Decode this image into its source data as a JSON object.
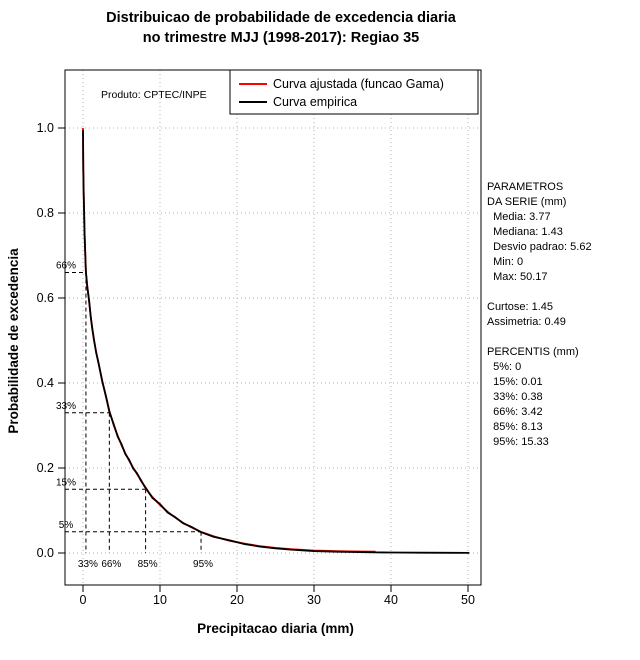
{
  "chart_data": {
    "type": "line",
    "title": "Distribuicao de probabilidade de excedencia diaria no trimestre MJJ (1998-2017): Regiao 35",
    "title_lines": [
      "Distribuicao de probabilidade de excedencia diaria",
      "no trimestre MJJ (1998-2017): Regiao 35"
    ],
    "xlabel": "Precipitacao diaria (mm)",
    "ylabel": "Probabilidade de excedencia",
    "annotation": "Produto: CPTEC/INPE",
    "xlim": [
      0,
      50
    ],
    "ylim": [
      0,
      1
    ],
    "grid": true,
    "grid_color": "#b3b3b3",
    "legend_position": "top",
    "xticks": [
      {
        "v": 0,
        "label": "0"
      },
      {
        "v": 10,
        "label": "10"
      },
      {
        "v": 20,
        "label": "20"
      },
      {
        "v": 30,
        "label": "30"
      },
      {
        "v": 40,
        "label": "40"
      },
      {
        "v": 50,
        "label": "50"
      }
    ],
    "yticks": [
      {
        "v": 0,
        "label": "0.0"
      },
      {
        "v": 0.2,
        "label": "0.2"
      },
      {
        "v": 0.4,
        "label": "0.4"
      },
      {
        "v": 0.6,
        "label": "0.6"
      },
      {
        "v": 0.8,
        "label": "0.8"
      },
      {
        "v": 1,
        "label": "1.0"
      }
    ],
    "series": [
      {
        "name": "Curva ajustada (funcao Gama)",
        "color": "#ff0000",
        "width": 1.8,
        "points": [
          [
            0,
            1
          ],
          [
            0.03,
            0.92
          ],
          [
            0.07,
            0.865
          ],
          [
            0.12,
            0.82
          ],
          [
            0.2,
            0.757
          ],
          [
            0.3,
            0.703
          ],
          [
            0.38,
            0.66
          ],
          [
            0.55,
            0.63
          ],
          [
            0.8,
            0.59
          ],
          [
            1,
            0.558
          ],
          [
            1.2,
            0.528
          ],
          [
            1.43,
            0.5
          ],
          [
            1.7,
            0.474
          ],
          [
            2,
            0.447
          ],
          [
            2.5,
            0.405
          ],
          [
            3,
            0.366
          ],
          [
            3.42,
            0.335
          ],
          [
            4,
            0.3
          ],
          [
            4.5,
            0.276
          ],
          [
            5,
            0.254
          ],
          [
            5.5,
            0.235
          ],
          [
            6,
            0.217
          ],
          [
            6.5,
            0.201
          ],
          [
            7,
            0.186
          ],
          [
            7.6,
            0.17
          ],
          [
            8.13,
            0.152
          ],
          [
            9,
            0.132
          ],
          [
            10,
            0.113
          ],
          [
            11,
            0.097
          ],
          [
            12,
            0.083
          ],
          [
            13,
            0.071
          ],
          [
            14,
            0.061
          ],
          [
            15.33,
            0.05
          ],
          [
            17,
            0.039
          ],
          [
            19,
            0.029
          ],
          [
            21,
            0.022
          ],
          [
            23,
            0.016
          ],
          [
            25,
            0.012
          ],
          [
            27,
            0.009
          ],
          [
            30,
            0.006
          ],
          [
            33,
            0.0045
          ],
          [
            36,
            0.0035
          ],
          [
            38,
            0.003
          ]
        ]
      },
      {
        "name": "Curva empirica",
        "color": "#000000",
        "width": 1.8,
        "points": [
          [
            0,
            0.995
          ],
          [
            0.04,
            0.9
          ],
          [
            0.09,
            0.845
          ],
          [
            0.14,
            0.805
          ],
          [
            0.2,
            0.755
          ],
          [
            0.3,
            0.7
          ],
          [
            0.38,
            0.662
          ],
          [
            0.55,
            0.628
          ],
          [
            0.8,
            0.592
          ],
          [
            1,
            0.556
          ],
          [
            1.2,
            0.53
          ],
          [
            1.43,
            0.502
          ],
          [
            1.7,
            0.472
          ],
          [
            2,
            0.449
          ],
          [
            2.5,
            0.403
          ],
          [
            3,
            0.368
          ],
          [
            3.42,
            0.333
          ],
          [
            4,
            0.302
          ],
          [
            4.5,
            0.274
          ],
          [
            5,
            0.256
          ],
          [
            5.5,
            0.233
          ],
          [
            6,
            0.219
          ],
          [
            6.5,
            0.199
          ],
          [
            7,
            0.188
          ],
          [
            7.6,
            0.168
          ],
          [
            8.13,
            0.154
          ],
          [
            9,
            0.13
          ],
          [
            10,
            0.115
          ],
          [
            11,
            0.095
          ],
          [
            12,
            0.084
          ],
          [
            13,
            0.07
          ],
          [
            14,
            0.062
          ],
          [
            15.33,
            0.049
          ],
          [
            17,
            0.038
          ],
          [
            19,
            0.03
          ],
          [
            21,
            0.021
          ],
          [
            23,
            0.015
          ],
          [
            25,
            0.011
          ],
          [
            27,
            0.008
          ],
          [
            30,
            0.0045
          ],
          [
            33,
            0.003
          ],
          [
            36,
            0.002
          ],
          [
            38,
            0.0015
          ],
          [
            40,
            0.0012
          ],
          [
            44,
            0.0008
          ],
          [
            48,
            0.0004
          ],
          [
            50.17,
            0.0002
          ]
        ]
      }
    ],
    "percentile_guides": [
      {
        "y_label": "66%",
        "y": 0.66,
        "x": 0.38,
        "x_label": "33%"
      },
      {
        "y_label": "33%",
        "y": 0.33,
        "x": 3.42,
        "x_label": "66%"
      },
      {
        "y_label": "15%",
        "y": 0.15,
        "x": 8.13,
        "x_label": "85%"
      },
      {
        "y_label": "5%",
        "y": 0.05,
        "x": 15.33,
        "x_label": "95%"
      }
    ],
    "stats": {
      "media": 3.77,
      "mediana": 1.43,
      "desvio_padrao": 5.62,
      "min": 0,
      "max": 50.17,
      "curtose": 1.45,
      "assimetria": 0.49
    },
    "percentis": {
      "5%": 0,
      "15%": 0.01,
      "33%": 0.38,
      "66%": 3.42,
      "85%": 8.13,
      "95%": 15.33
    }
  },
  "side_panel": {
    "lines": [
      "PARAMETROS",
      "DA SERIE (mm)",
      "  Media: 3.77",
      "  Mediana: 1.43",
      "  Desvio padrao: 5.62",
      "  Min: 0",
      "  Max: 50.17",
      "",
      "Curtose: 1.45",
      "Assimetria: 0.49",
      "",
      "PERCENTIS (mm)",
      "  5%: 0",
      "  15%: 0.01",
      "  33%: 0.38",
      "  66%: 3.42",
      "  85%: 8.13",
      "  95%: 15.33"
    ]
  }
}
